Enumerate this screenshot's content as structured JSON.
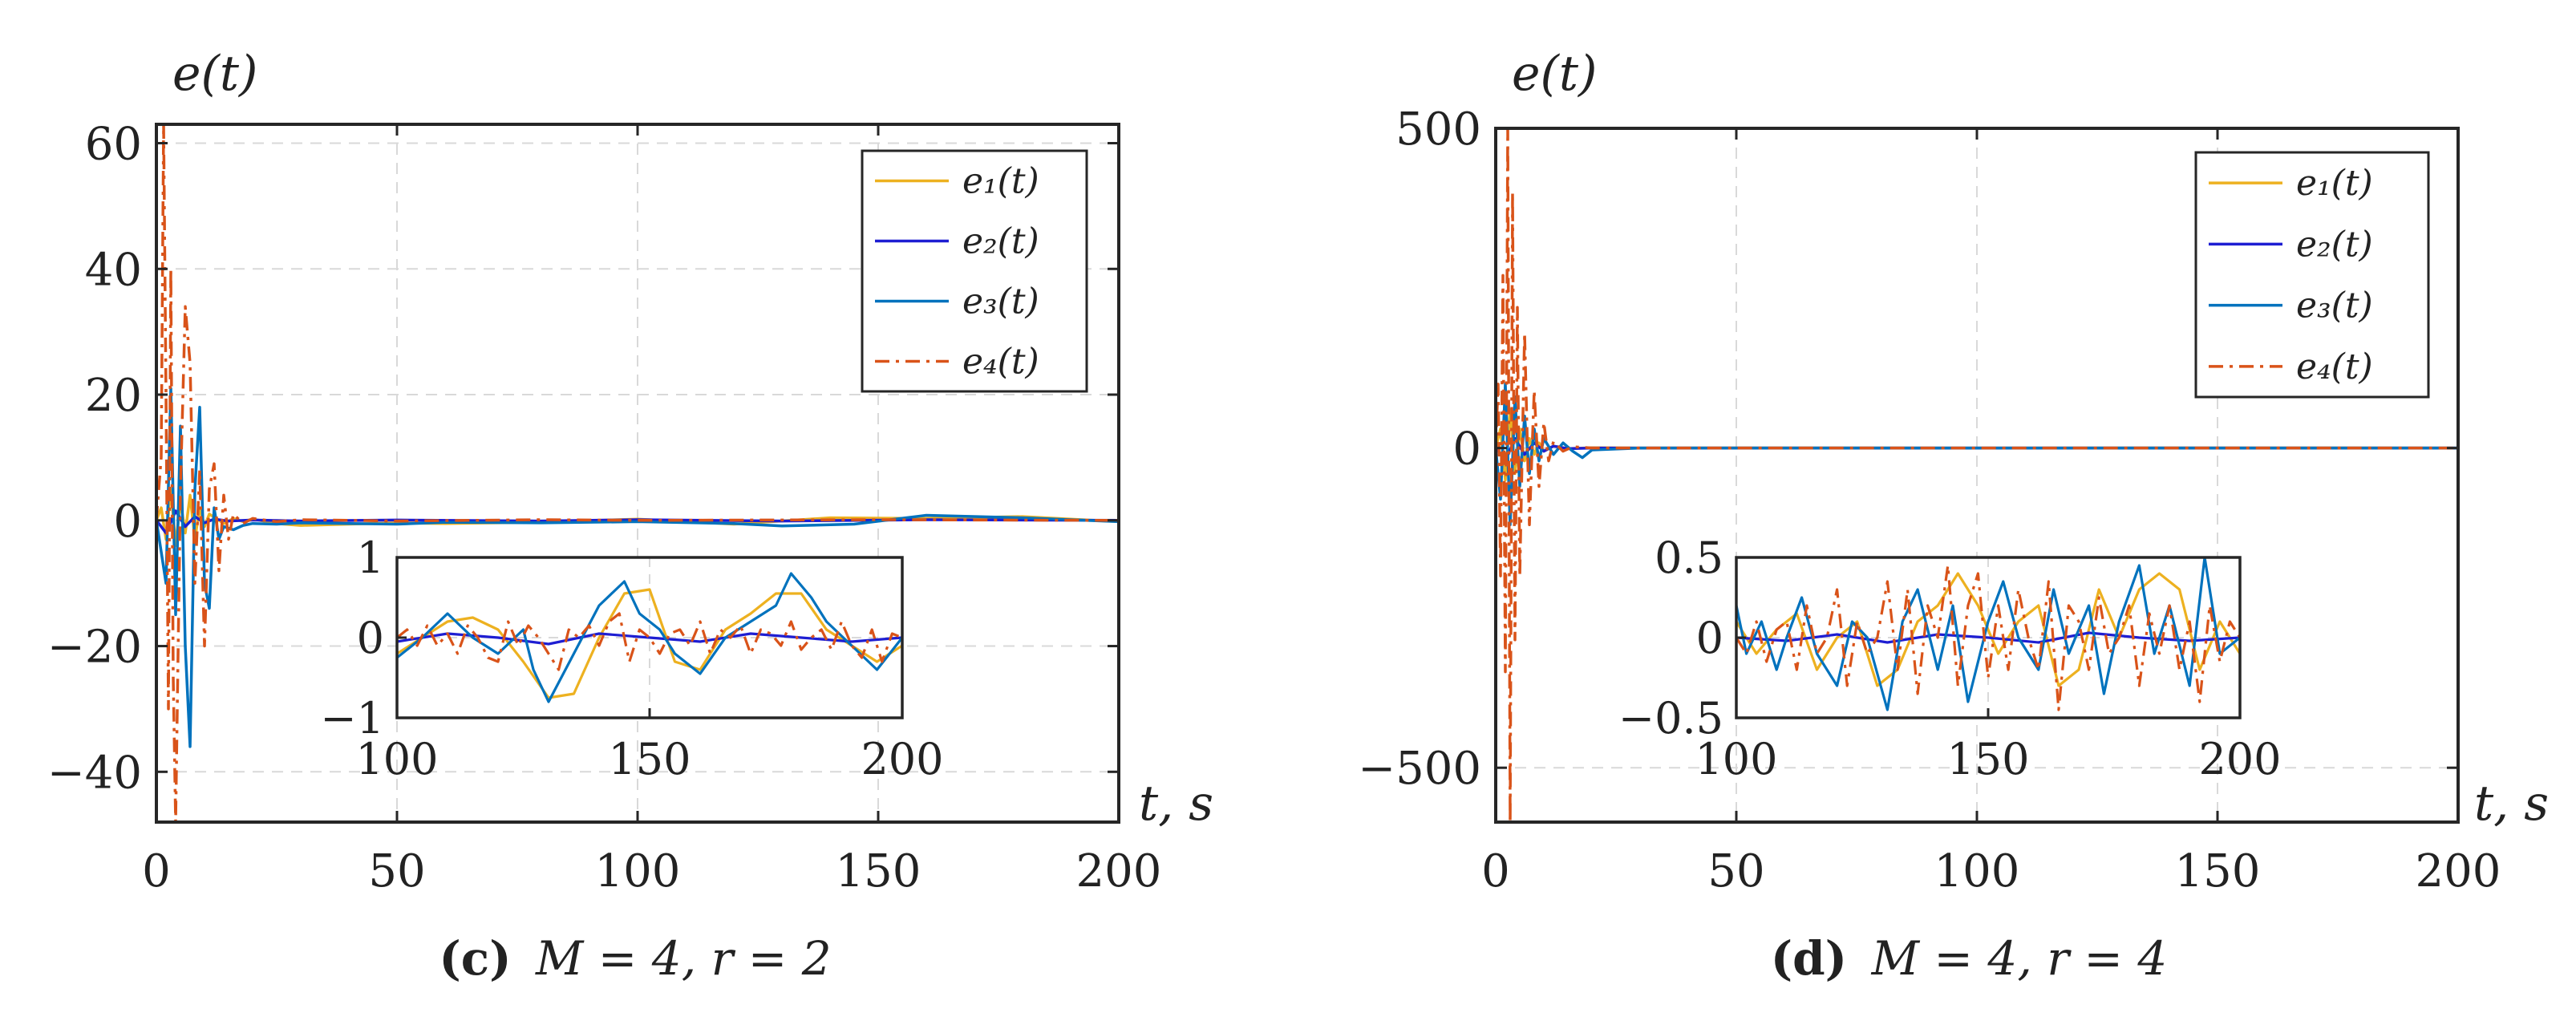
{
  "figure": {
    "panels": [
      "c",
      "d"
    ]
  },
  "chart_data": [
    {
      "id": "c",
      "type": "line",
      "caption_letter": "(c)",
      "caption_text": "M = 4,  r = 2",
      "ylabel": "e(t)",
      "xlabel": "t, s",
      "xlim": [
        0,
        200
      ],
      "ylim": [
        -48,
        63
      ],
      "xticks": [
        0,
        50,
        100,
        150,
        200
      ],
      "xtick_labels": [
        "0",
        "50",
        "100",
        "150",
        "200"
      ],
      "yticks": [
        -40,
        -20,
        0,
        20,
        40,
        60
      ],
      "ytick_labels": [
        "−40",
        "−20",
        "0",
        "20",
        "40",
        "60"
      ],
      "grid": true,
      "legend_position": "top-right",
      "series": [
        {
          "name": "e1(t)",
          "label": "e₁(t)",
          "color": "#EDB120",
          "dash": "solid",
          "x": [
            0,
            1,
            2,
            3,
            4,
            5,
            6,
            7,
            8,
            9,
            10,
            11,
            12,
            14,
            16,
            18,
            20,
            25,
            30,
            40,
            50,
            60,
            80,
            100,
            120,
            140,
            160,
            180,
            200
          ],
          "y": [
            0,
            2,
            -3,
            5,
            -4,
            3,
            -2,
            4,
            -3,
            2,
            -1,
            1,
            0.5,
            -0.5,
            0.3,
            -0.2,
            0.2,
            -0.5,
            -0.8,
            -0.6,
            -0.4,
            -0.5,
            -0.3,
            0.2,
            -0.6,
            0.4,
            0.3,
            0.6,
            -0.2
          ]
        },
        {
          "name": "e2(t)",
          "label": "e₂(t)",
          "color": "#1E1ED2",
          "dash": "solid",
          "x": [
            0,
            2,
            4,
            6,
            8,
            10,
            12,
            15,
            20,
            30,
            50,
            80,
            100,
            130,
            160,
            200
          ],
          "y": [
            0,
            -2,
            1.5,
            -1,
            0.6,
            -0.4,
            0.2,
            -0.1,
            0.05,
            -0.1,
            0.05,
            -0.1,
            0.1,
            -0.1,
            0.1,
            0.0
          ]
        },
        {
          "name": "e3(t)",
          "label": "e₃(t)",
          "color": "#0072BD",
          "dash": "solid",
          "x": [
            0,
            1,
            2,
            3,
            4,
            5,
            6,
            7,
            8,
            9,
            10,
            11,
            12,
            13,
            14,
            16,
            18,
            20,
            25,
            30,
            40,
            50,
            60,
            80,
            100,
            120,
            130,
            145,
            160,
            180,
            200
          ],
          "y": [
            0,
            -5,
            -10,
            21,
            -15,
            15,
            -20,
            -36,
            5,
            18,
            -10,
            -14,
            2,
            -3,
            -1,
            -1.5,
            -0.8,
            -0.5,
            -0.6,
            -0.4,
            -0.5,
            -0.6,
            -0.3,
            -0.4,
            -0.2,
            -0.5,
            -0.9,
            -0.6,
            0.8,
            0.4,
            -0.2
          ]
        },
        {
          "name": "e4(t)",
          "label": "e₄(t)",
          "color": "#D95319",
          "dash": "dashdot",
          "x": [
            0,
            1,
            1.5,
            2,
            2.5,
            3,
            3.5,
            4,
            5,
            6,
            7,
            8,
            9,
            10,
            11,
            12,
            13,
            14,
            15,
            16,
            18,
            20,
            25,
            30,
            50,
            80,
            100,
            150,
            200
          ],
          "y": [
            0,
            10,
            63,
            20,
            -30,
            40,
            -25,
            -48,
            5,
            34,
            25,
            -10,
            8,
            -20,
            5,
            9,
            -8,
            4,
            -3,
            1,
            -0.5,
            0.3,
            -0.2,
            0.1,
            -0.1,
            0.1,
            0.0,
            0.1,
            0.0
          ]
        }
      ],
      "inset": {
        "xlim": [
          100,
          200
        ],
        "ylim": [
          -1,
          1
        ],
        "xticks": [
          100,
          150,
          200
        ],
        "xtick_labels": [
          "100",
          "150",
          "200"
        ],
        "yticks": [
          -1,
          0,
          1
        ],
        "ytick_labels": [
          "−1",
          "0",
          "1"
        ],
        "series": [
          {
            "name": "e1(t)",
            "x": [
              100,
              105,
              110,
              115,
              120,
              125,
              130,
              135,
              140,
              145,
              150,
              155,
              160,
              165,
              170,
              175,
              180,
              185,
              190,
              195,
              200
            ],
            "y": [
              -0.2,
              0.0,
              0.2,
              0.25,
              0.1,
              -0.3,
              -0.75,
              -0.7,
              0.0,
              0.55,
              0.6,
              -0.3,
              -0.4,
              0.1,
              0.3,
              0.55,
              0.55,
              0.1,
              -0.1,
              -0.3,
              -0.1
            ]
          },
          {
            "name": "e2(t)",
            "x": [
              100,
              110,
              120,
              130,
              140,
              150,
              160,
              170,
              180,
              190,
              200
            ],
            "y": [
              -0.05,
              0.05,
              0.0,
              -0.08,
              0.05,
              0.0,
              -0.05,
              0.05,
              0.0,
              -0.05,
              0.0
            ]
          },
          {
            "name": "e3(t)",
            "x": [
              100,
              105,
              110,
              115,
              120,
              125,
              127,
              130,
              135,
              140,
              145,
              148,
              152,
              155,
              160,
              165,
              170,
              175,
              178,
              182,
              185,
              190,
              195,
              200
            ],
            "y": [
              -0.25,
              0.0,
              0.3,
              0.0,
              -0.2,
              0.1,
              -0.4,
              -0.8,
              -0.2,
              0.4,
              0.7,
              0.3,
              0.1,
              -0.2,
              -0.45,
              0.0,
              0.2,
              0.4,
              0.8,
              0.5,
              0.2,
              -0.1,
              -0.4,
              0.0
            ]
          },
          {
            "name": "e4(t)",
            "x": [
              100,
              102,
              104,
              106,
              108,
              110,
              112,
              114,
              116,
              118,
              120,
              122,
              124,
              126,
              128,
              130,
              132,
              134,
              136,
              138,
              140,
              142,
              144,
              146,
              148,
              150,
              152,
              154,
              156,
              158,
              160,
              162,
              164,
              166,
              168,
              170,
              172,
              174,
              176,
              178,
              180,
              182,
              184,
              186,
              188,
              190,
              192,
              194,
              196,
              198,
              200
            ],
            "y": [
              0.0,
              0.1,
              -0.1,
              0.15,
              -0.1,
              0.05,
              -0.2,
              0.15,
              0.0,
              -0.25,
              -0.3,
              0.2,
              -0.1,
              0.15,
              0.0,
              -0.2,
              -0.4,
              0.1,
              0.0,
              0.15,
              -0.1,
              0.2,
              0.3,
              -0.3,
              0.1,
              0.0,
              -0.2,
              0.05,
              0.1,
              -0.1,
              0.2,
              -0.2,
              0.1,
              0.0,
              0.15,
              -0.2,
              0.1,
              0.05,
              -0.1,
              0.2,
              -0.15,
              0.0,
              0.1,
              -0.15,
              0.2,
              -0.1,
              -0.25,
              0.1,
              -0.3,
              0.05,
              0.0
            ]
          }
        ]
      }
    },
    {
      "id": "d",
      "type": "line",
      "caption_letter": "(d)",
      "caption_text": "M = 4,  r = 4",
      "ylabel": "e(t)",
      "xlabel": "t, s",
      "xlim": [
        0,
        200
      ],
      "ylim": [
        -585,
        500
      ],
      "xticks": [
        0,
        50,
        100,
        150,
        200
      ],
      "xtick_labels": [
        "0",
        "50",
        "100",
        "150",
        "200"
      ],
      "yticks": [
        -500,
        0,
        500
      ],
      "ytick_labels": [
        "−500",
        "0",
        "500"
      ],
      "grid": true,
      "legend_position": "top-right",
      "series": [
        {
          "name": "e1(t)",
          "label": "e₁(t)",
          "color": "#EDB120",
          "dash": "solid",
          "x": [
            0,
            1,
            2,
            3,
            4,
            5,
            6,
            7,
            8,
            9,
            10,
            12,
            15,
            20,
            30,
            50,
            100,
            150,
            200
          ],
          "y": [
            0,
            30,
            -50,
            60,
            -40,
            30,
            -20,
            15,
            -10,
            8,
            -5,
            3,
            -1,
            0.5,
            0,
            0.2,
            0,
            0.2,
            0
          ]
        },
        {
          "name": "e2(t)",
          "label": "e₂(t)",
          "color": "#1E1ED2",
          "dash": "solid",
          "x": [
            0,
            2,
            4,
            6,
            8,
            10,
            12,
            15,
            20,
            50,
            100,
            150,
            200
          ],
          "y": [
            0,
            -20,
            15,
            -10,
            8,
            -5,
            3,
            -1,
            0,
            0,
            0,
            0,
            0
          ]
        },
        {
          "name": "e3(t)",
          "label": "e₃(t)",
          "color": "#0072BD",
          "dash": "solid",
          "x": [
            0,
            1,
            2,
            3,
            4,
            5,
            6,
            7,
            8,
            9,
            10,
            12,
            14,
            16,
            18,
            20,
            30,
            50,
            100,
            150,
            200
          ],
          "y": [
            0,
            -80,
            100,
            -120,
            80,
            -60,
            50,
            -40,
            30,
            -20,
            15,
            -10,
            8,
            -5,
            -15,
            -3,
            0,
            0,
            0,
            0,
            0
          ]
        },
        {
          "name": "e4(t)",
          "label": "e₄(t)",
          "color": "#D95319",
          "dash": "dashdot",
          "x": [
            0,
            0.5,
            1,
            1.5,
            2,
            2.5,
            3,
            3.5,
            4,
            4.5,
            5,
            6,
            7,
            8,
            9,
            10,
            11,
            12,
            14,
            16,
            20,
            30,
            50,
            100,
            150,
            200
          ],
          "y": [
            0,
            100,
            -200,
            270,
            -350,
            500,
            -585,
            400,
            -300,
            220,
            -200,
            180,
            -120,
            90,
            -60,
            40,
            -20,
            10,
            -5,
            2,
            0,
            0,
            0,
            0,
            0,
            0
          ]
        }
      ],
      "inset": {
        "xlim": [
          100,
          200
        ],
        "ylim": [
          -0.5,
          0.5
        ],
        "xticks": [
          100,
          150,
          200
        ],
        "xtick_labels": [
          "100",
          "150",
          "200"
        ],
        "yticks": [
          -0.5,
          0,
          0.5
        ],
        "ytick_labels": [
          "−0.5",
          "0",
          "0.5"
        ],
        "series": [
          {
            "name": "e1(t)",
            "x": [
              100,
              104,
              108,
              112,
              116,
              120,
              124,
              128,
              132,
              136,
              140,
              144,
              148,
              152,
              156,
              160,
              164,
              168,
              172,
              176,
              180,
              184,
              188,
              192,
              196,
              200
            ],
            "y": [
              0.1,
              -0.1,
              0.05,
              0.15,
              -0.2,
              0.0,
              0.1,
              -0.3,
              -0.2,
              0.1,
              0.2,
              0.4,
              0.2,
              -0.1,
              0.1,
              0.2,
              -0.3,
              -0.2,
              0.3,
              0.0,
              0.3,
              0.4,
              0.3,
              -0.2,
              0.1,
              -0.1
            ]
          },
          {
            "name": "e2(t)",
            "x": [
              100,
              110,
              120,
              130,
              140,
              150,
              160,
              170,
              180,
              190,
              200
            ],
            "y": [
              0.0,
              -0.02,
              0.02,
              -0.03,
              0.02,
              0.0,
              -0.03,
              0.03,
              0.0,
              -0.02,
              0.0
            ]
          },
          {
            "name": "e3(t)",
            "x": [
              100,
              102,
              105,
              108,
              110,
              113,
              116,
              120,
              123,
              126,
              130,
              133,
              136,
              140,
              143,
              146,
              150,
              153,
              156,
              160,
              163,
              166,
              170,
              173,
              176,
              180,
              183,
              186,
              190,
              193,
              196,
              200
            ],
            "y": [
              0.2,
              -0.1,
              0.1,
              -0.2,
              0.0,
              0.25,
              -0.1,
              -0.3,
              0.1,
              0.0,
              -0.45,
              0.1,
              0.3,
              -0.2,
              0.2,
              -0.4,
              0.1,
              0.35,
              0.0,
              -0.2,
              0.3,
              -0.1,
              0.2,
              -0.35,
              0.1,
              0.45,
              -0.1,
              0.2,
              -0.3,
              0.5,
              -0.1,
              0.0
            ]
          },
          {
            "name": "e4(t)",
            "x": [
              100,
              102,
              104,
              106,
              108,
              110,
              112,
              114,
              116,
              118,
              120,
              122,
              124,
              126,
              128,
              130,
              132,
              134,
              136,
              138,
              140,
              142,
              144,
              146,
              148,
              150,
              152,
              154,
              156,
              158,
              160,
              162,
              164,
              166,
              168,
              170,
              172,
              174,
              176,
              178,
              180,
              182,
              184,
              186,
              188,
              190,
              192,
              194,
              196,
              198,
              200
            ],
            "y": [
              0.0,
              -0.1,
              0.1,
              -0.15,
              0.05,
              0.1,
              -0.2,
              0.2,
              -0.1,
              0.0,
              0.3,
              -0.3,
              0.1,
              -0.1,
              0.0,
              0.35,
              -0.2,
              0.3,
              -0.35,
              0.2,
              0.0,
              0.45,
              -0.3,
              0.2,
              0.4,
              -0.25,
              0.2,
              -0.2,
              0.3,
              0.0,
              -0.2,
              0.35,
              -0.45,
              0.2,
              0.1,
              -0.2,
              0.25,
              -0.1,
              0.0,
              0.2,
              -0.3,
              0.15,
              -0.1,
              0.2,
              -0.2,
              0.1,
              -0.4,
              0.2,
              -0.15,
              0.1,
              0.0
            ]
          }
        ]
      }
    }
  ]
}
